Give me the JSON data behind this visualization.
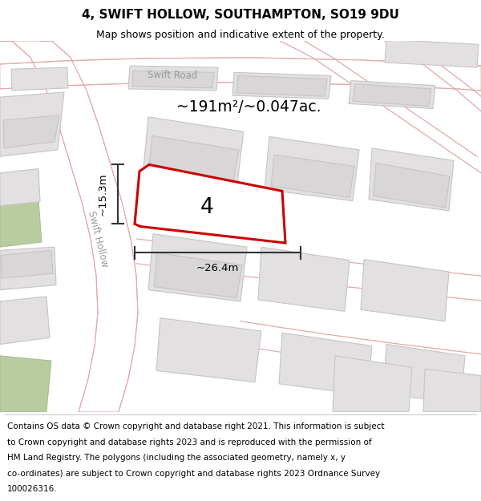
{
  "title": "4, SWIFT HOLLOW, SOUTHAMPTON, SO19 9DU",
  "subtitle": "Map shows position and indicative extent of the property.",
  "footer_lines": [
    "Contains OS data © Crown copyright and database right 2021. This information is subject",
    "to Crown copyright and database rights 2023 and is reproduced with the permission of",
    "HM Land Registry. The polygons (including the associated geometry, namely x, y",
    "co-ordinates) are subject to Crown copyright and database rights 2023 Ordnance Survey",
    "100026316."
  ],
  "area_text": "~191m²/~0.047ac.",
  "width_text": "~26.4m",
  "height_text": "~15.3m",
  "label_4": "4",
  "road_label_hollow": "Swift Hollow",
  "road_label_swift": "Swift Road",
  "map_bg": "#eeecec",
  "highlight_color": "#cc0000",
  "building_fill": "#e2e0e0",
  "building_edge": "#c8c4c4",
  "road_fill": "#ffffff",
  "road_edge": "#e0aaaa",
  "green_fill": "#b8ccA0",
  "green_edge": "#a0b888",
  "title_fontsize": 11,
  "subtitle_fontsize": 9,
  "footer_fontsize": 7.5
}
